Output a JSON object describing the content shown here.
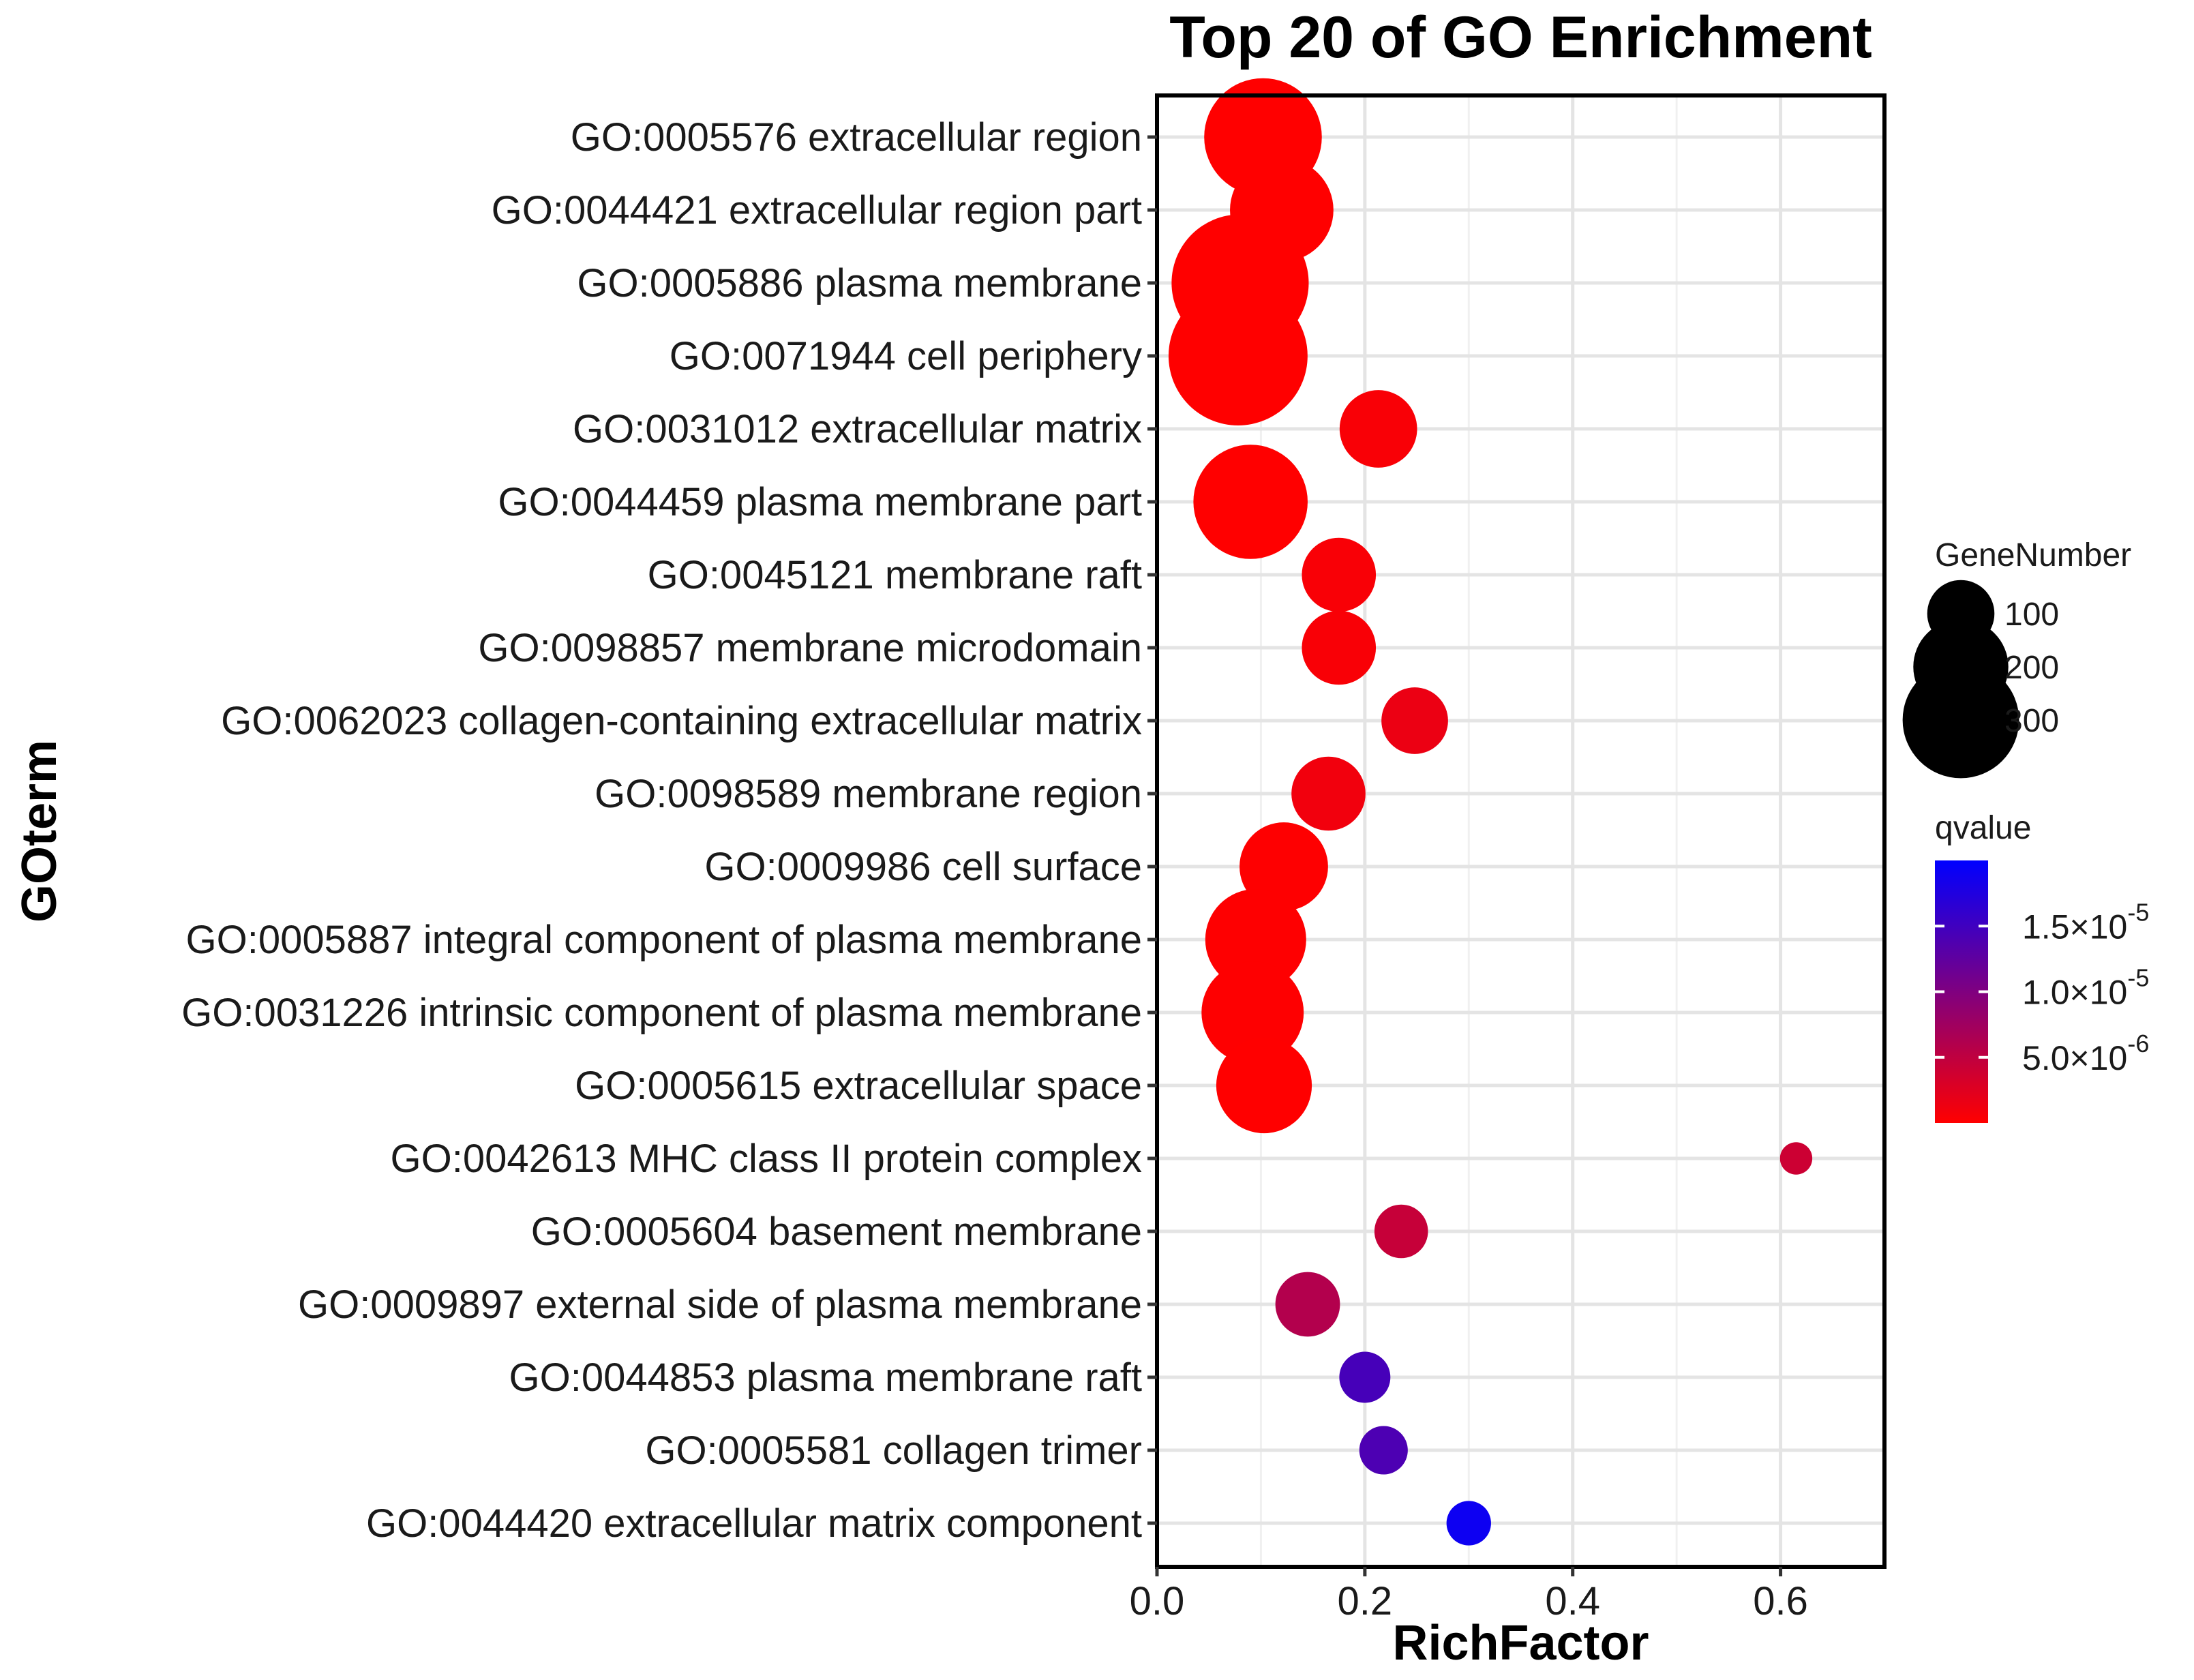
{
  "chart_data": {
    "type": "scatter",
    "title": "Top 20 of GO Enrichment",
    "xlabel": "RichFactor",
    "ylabel": "GOterm",
    "xlim": [
      0,
      0.7
    ],
    "xticks": [
      0.0,
      0.2,
      0.4,
      0.6
    ],
    "xtick_labels": [
      "0.0",
      "0.2",
      "0.4",
      "0.6"
    ],
    "grid": true,
    "points": [
      {
        "term": "GO:0005576 extracellular region",
        "rich_factor": 0.102,
        "gene_number": 265,
        "qvalue": 1e-09
      },
      {
        "term": "GO:0044421 extracellular region part",
        "rich_factor": 0.12,
        "gene_number": 205,
        "qvalue": 1e-09
      },
      {
        "term": "GO:0005886 plasma membrane",
        "rich_factor": 0.08,
        "gene_number": 360,
        "qvalue": 1e-09
      },
      {
        "term": "GO:0071944 cell periphery",
        "rich_factor": 0.078,
        "gene_number": 370,
        "qvalue": 1e-09
      },
      {
        "term": "GO:0031012 extracellular matrix",
        "rich_factor": 0.213,
        "gene_number": 115,
        "qvalue": 5e-07
      },
      {
        "term": "GO:0044459 plasma membrane part",
        "rich_factor": 0.09,
        "gene_number": 250,
        "qvalue": 1e-09
      },
      {
        "term": "GO:0045121 membrane raft",
        "rich_factor": 0.175,
        "gene_number": 105,
        "qvalue": 5e-07
      },
      {
        "term": "GO:0098857 membrane microdomain",
        "rich_factor": 0.175,
        "gene_number": 105,
        "qvalue": 5e-07
      },
      {
        "term": "GO:0062023 collagen-containing extracellular matrix",
        "rich_factor": 0.248,
        "gene_number": 85,
        "qvalue": 1.5e-06
      },
      {
        "term": "GO:0098589 membrane region",
        "rich_factor": 0.165,
        "gene_number": 105,
        "qvalue": 1e-06
      },
      {
        "term": "GO:0009986 cell surface",
        "rich_factor": 0.122,
        "gene_number": 150,
        "qvalue": 1e-07
      },
      {
        "term": "GO:0005887 integral component of plasma membrane",
        "rich_factor": 0.095,
        "gene_number": 195,
        "qvalue": 1e-07
      },
      {
        "term": "GO:0031226 intrinsic component of plasma membrane",
        "rich_factor": 0.092,
        "gene_number": 200,
        "qvalue": 1e-07
      },
      {
        "term": "GO:0005615 extracellular space",
        "rich_factor": 0.103,
        "gene_number": 175,
        "qvalue": 1e-08
      },
      {
        "term": "GO:0042613 MHC class II protein complex",
        "rich_factor": 0.615,
        "gene_number": 20,
        "qvalue": 4e-06
      },
      {
        "term": "GO:0005604 basement membrane",
        "rich_factor": 0.235,
        "gene_number": 55,
        "qvalue": 4.5e-06
      },
      {
        "term": "GO:0009897 external side of plasma membrane",
        "rich_factor": 0.145,
        "gene_number": 80,
        "qvalue": 6e-06
      },
      {
        "term": "GO:0044853 plasma membrane raft",
        "rich_factor": 0.2,
        "gene_number": 50,
        "qvalue": 1.45e-05
      },
      {
        "term": "GO:0005581 collagen trimer",
        "rich_factor": 0.218,
        "gene_number": 45,
        "qvalue": 1.4e-05
      },
      {
        "term": "GO:0044420 extracellular matrix component",
        "rich_factor": 0.3,
        "gene_number": 38,
        "qvalue": 1.9e-05
      }
    ],
    "legend_size": {
      "title": "GeneNumber",
      "values": [
        100,
        200,
        300
      ],
      "labels": [
        "100",
        "200",
        "300"
      ]
    },
    "legend_color": {
      "title": "qvalue",
      "range": [
        0,
        2e-05
      ],
      "color_low": "#ff0000",
      "color_high": "#0000ff",
      "ticks": [
        {
          "value": 1.5e-05,
          "mantissa": "1.5",
          "exponent": "-5"
        },
        {
          "value": 1e-05,
          "mantissa": "1.0",
          "exponent": "-5"
        },
        {
          "value": 5e-06,
          "mantissa": "5.0",
          "exponent": "-6"
        }
      ]
    }
  }
}
